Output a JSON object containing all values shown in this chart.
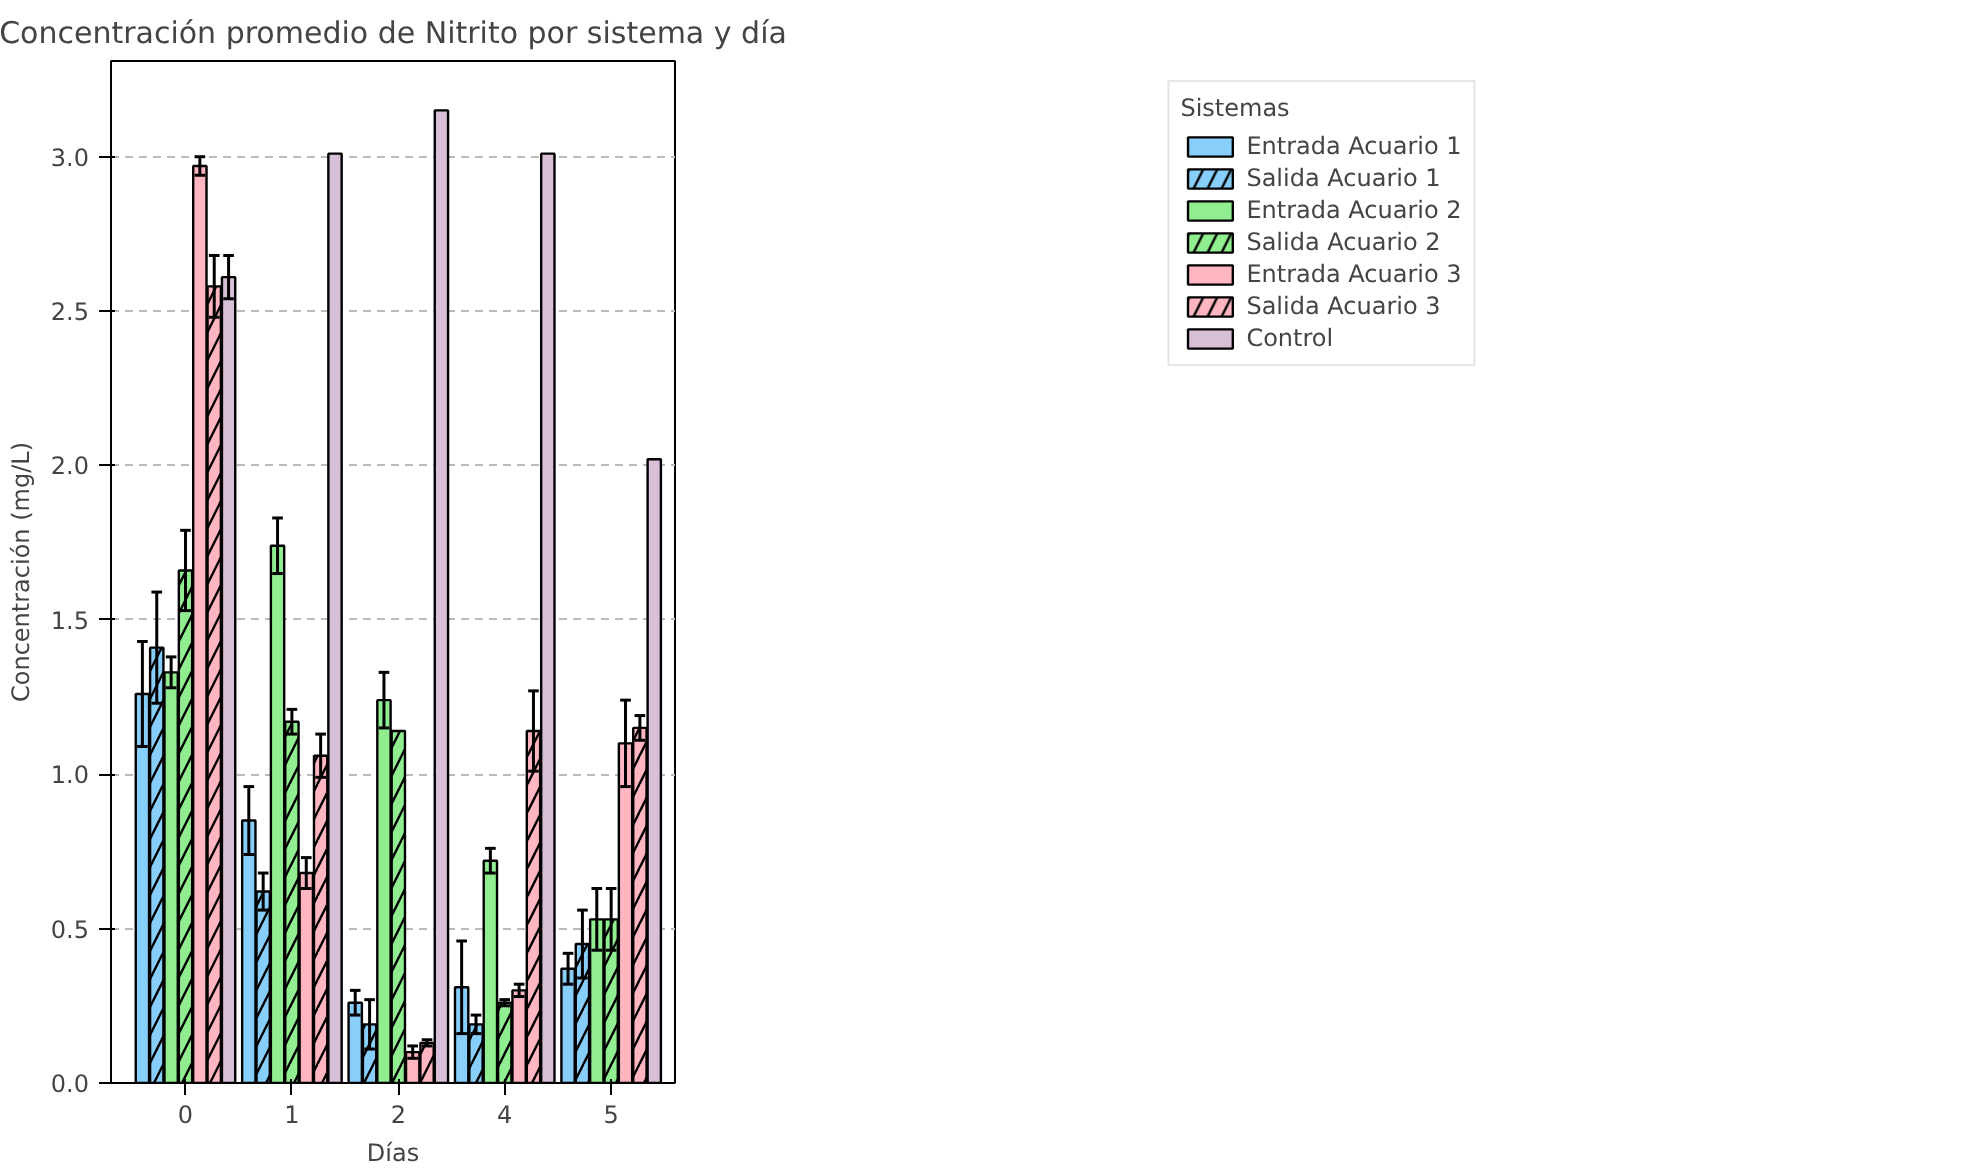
{
  "chart_data": {
    "type": "bar",
    "title": "Concentración promedio de Nitrito por sistema y día",
    "xlabel": "Días",
    "ylabel": "Concentración (mg/L)",
    "legend_title": "Sistemas",
    "categories": [
      "0",
      "1",
      "2",
      "4",
      "5"
    ],
    "series": [
      {
        "name": "Entrada Acuario 1",
        "color": "#87cefa",
        "values": [
          1.26,
          0.85,
          0.26,
          0.31,
          0.37
        ],
        "errors": [
          0.17,
          0.11,
          0.04,
          0.15,
          0.05
        ]
      },
      {
        "name": "Salida Acuario 1",
        "color": "#87cefa",
        "values": [
          1.41,
          0.62,
          0.19,
          0.19,
          0.45
        ],
        "errors": [
          0.18,
          0.06,
          0.08,
          0.03,
          0.11
        ]
      },
      {
        "name": "Entrada Acuario 2",
        "color": "#90ee90",
        "values": [
          1.33,
          1.74,
          1.24,
          0.72,
          0.53
        ],
        "errors": [
          0.05,
          0.09,
          0.09,
          0.04,
          0.1
        ]
      },
      {
        "name": "Salida Acuario 2",
        "color": "#90ee90",
        "values": [
          1.66,
          1.17,
          1.14,
          0.26,
          0.53
        ],
        "errors": [
          0.13,
          0.04,
          null,
          0.01,
          0.1
        ]
      },
      {
        "name": "Entrada Acuario 3",
        "color": "#ffb6c1",
        "values": [
          2.97,
          0.68,
          0.1,
          0.3,
          1.1
        ],
        "errors": [
          0.03,
          0.05,
          0.02,
          0.02,
          0.14
        ]
      },
      {
        "name": "Salida Acuario 3",
        "color": "#ffb6c1",
        "values": [
          2.58,
          1.06,
          0.13,
          1.14,
          1.15
        ],
        "errors": [
          0.1,
          0.07,
          0.01,
          0.13,
          0.04
        ]
      },
      {
        "name": "Control",
        "color": "#d8bfd8",
        "values": [
          2.61,
          3.01,
          3.15,
          3.01,
          2.02
        ],
        "errors": [
          0.07,
          null,
          null,
          null,
          null
        ]
      }
    ],
    "ylim": [
      0,
      3.31
    ],
    "yticks": [
      {
        "value": 0,
        "label": "0.0"
      },
      {
        "value": 0.5,
        "label": "0.5"
      },
      {
        "value": 1,
        "label": "1.0"
      },
      {
        "value": 1.5,
        "label": "1.5"
      },
      {
        "value": 2,
        "label": "2.0"
      },
      {
        "value": 2.5,
        "label": "2.5"
      },
      {
        "value": 3,
        "label": "3.0"
      }
    ],
    "grid": "y",
    "legend": "top right"
  }
}
